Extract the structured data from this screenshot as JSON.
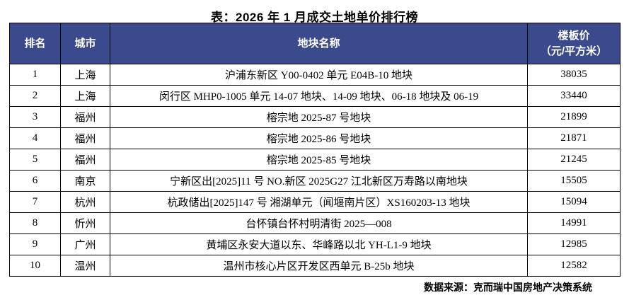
{
  "chart_data": {
    "type": "table",
    "title": "表：2026 年 1 月成交土地单价排行榜",
    "headers": {
      "rank": "排名",
      "city": "城市",
      "name": "地块名称",
      "price_line1": "楼板价",
      "price_line2": "（元/平方米）"
    },
    "rows": [
      {
        "rank": "1",
        "city": "上海",
        "name": "沪浦东新区 Y00-0402 单元 E04B-10 地块",
        "price": "38035"
      },
      {
        "rank": "2",
        "city": "上海",
        "name": "闵行区 MHP0-1005 单元 14-07 地块、14-09 地块、06-18 地块及 06-19",
        "price": "33440"
      },
      {
        "rank": "3",
        "city": "福州",
        "name": "榕宗地 2025-87 号地块",
        "price": "21899"
      },
      {
        "rank": "4",
        "city": "福州",
        "name": "榕宗地 2025-86 号地块",
        "price": "21871"
      },
      {
        "rank": "5",
        "city": "福州",
        "name": "榕宗地 2025-85 号地块",
        "price": "21245"
      },
      {
        "rank": "6",
        "city": "南京",
        "name": "宁新区出[2025]11 号 NO.新区 2025G27 江北新区万寿路以南地块",
        "price": "15505"
      },
      {
        "rank": "7",
        "city": "杭州",
        "name": "杭政储出[2025]147 号 湘湖单元（闻堰南片区）XS160203-13 地块",
        "price": "15094"
      },
      {
        "rank": "8",
        "city": "忻州",
        "name": "台怀镇台怀村明清街 2025—008",
        "price": "14991"
      },
      {
        "rank": "9",
        "city": "广州",
        "name": "黄埔区永安大道以东、华峰路以北 YH-L1-9 地块",
        "price": "12985"
      },
      {
        "rank": "10",
        "city": "温州",
        "name": "温州市核心片区开发区西单元 B-25b 地块",
        "price": "12582"
      }
    ]
  },
  "footer": {
    "source": "数据来源：克而瑞中国房地产决策系统"
  },
  "colors": {
    "header_bg": "#3A4A8C",
    "header_text": "#FFFFFF",
    "border": "#000000"
  }
}
